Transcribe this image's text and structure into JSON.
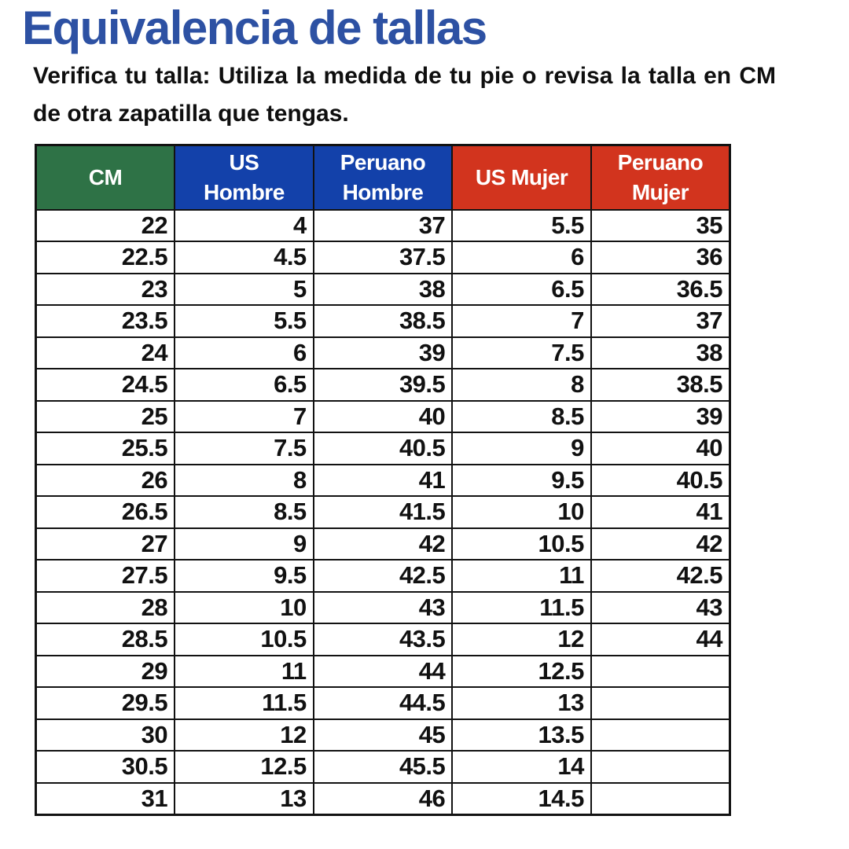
{
  "page": {
    "title": "Equivalencia de tallas",
    "title_color": "#2d51a3",
    "subtitle": "Verifica tu talla: Utiliza la medida de tu pie o revisa la talla en CM de otra zapatilla que tengas."
  },
  "table": {
    "columns": [
      {
        "id": "cm",
        "label": "CM",
        "color": "#2e7246"
      },
      {
        "id": "us-hombre",
        "label": "US\nHombre",
        "color": "#1341aa"
      },
      {
        "id": "peruano-hombre",
        "label": "Peruano\nHombre",
        "color": "#1341aa"
      },
      {
        "id": "us-mujer",
        "label": "US Mujer",
        "color": "#d2341e"
      },
      {
        "id": "peruano-mujer",
        "label": "Peruano\nMujer",
        "color": "#d2341e"
      }
    ],
    "rows": [
      [
        "22",
        "4",
        "37",
        "5.5",
        "35"
      ],
      [
        "22.5",
        "4.5",
        "37.5",
        "6",
        "36"
      ],
      [
        "23",
        "5",
        "38",
        "6.5",
        "36.5"
      ],
      [
        "23.5",
        "5.5",
        "38.5",
        "7",
        "37"
      ],
      [
        "24",
        "6",
        "39",
        "7.5",
        "38"
      ],
      [
        "24.5",
        "6.5",
        "39.5",
        "8",
        "38.5"
      ],
      [
        "25",
        "7",
        "40",
        "8.5",
        "39"
      ],
      [
        "25.5",
        "7.5",
        "40.5",
        "9",
        "40"
      ],
      [
        "26",
        "8",
        "41",
        "9.5",
        "40.5"
      ],
      [
        "26.5",
        "8.5",
        "41.5",
        "10",
        "41"
      ],
      [
        "27",
        "9",
        "42",
        "10.5",
        "42"
      ],
      [
        "27.5",
        "9.5",
        "42.5",
        "11",
        "42.5"
      ],
      [
        "28",
        "10",
        "43",
        "11.5",
        "43"
      ],
      [
        "28.5",
        "10.5",
        "43.5",
        "12",
        "44"
      ],
      [
        "29",
        "11",
        "44",
        "12.5",
        ""
      ],
      [
        "29.5",
        "11.5",
        "44.5",
        "13",
        ""
      ],
      [
        "30",
        "12",
        "45",
        "13.5",
        ""
      ],
      [
        "30.5",
        "12.5",
        "45.5",
        "14",
        ""
      ],
      [
        "31",
        "13",
        "46",
        "14.5",
        ""
      ]
    ]
  }
}
